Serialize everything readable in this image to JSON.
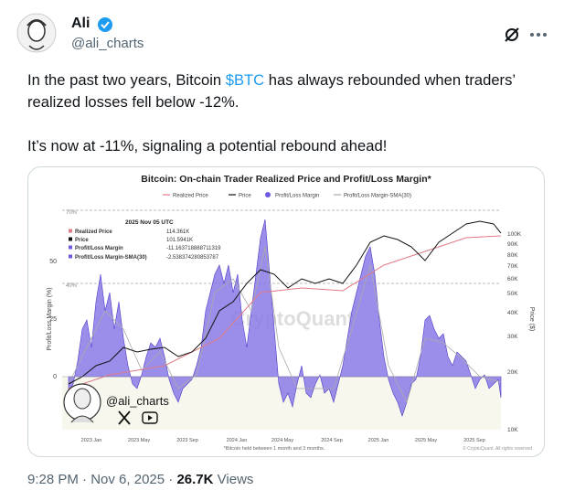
{
  "author": {
    "name": "Ali",
    "handle": "@ali_charts"
  },
  "tweet": {
    "text_before": "In the past two years, Bitcoin ",
    "cashtag": "$BTC",
    "text_after": " has always rebounded when traders’ realized losses fell below -12%.",
    "second_paragraph": "It’s now at -11%, signaling a potential rebound ahead!"
  },
  "image": {
    "title": "Bitcoin: On-chain Trader Realized Price and Profit/Loss Margin*",
    "legend": [
      "Realized Price",
      "Price",
      "Profit/Loss Margin",
      "Profit/Loss Margin-SMA(30)"
    ],
    "tooltip": {
      "date": "2025 Nov 05 UTC",
      "rows": [
        {
          "label": "Realized Price",
          "value": "114.361K"
        },
        {
          "label": "Price",
          "value": "101.5941K"
        },
        {
          "label": "Profit/Loss Margin",
          "value": "-11.163718888711319"
        },
        {
          "label": "Profit/Loss Margin-SMA(30)",
          "value": "-2.538374280853787"
        }
      ]
    },
    "left_ticks": [
      "50",
      "25",
      "0"
    ],
    "right_ticks": [
      "100K",
      "90K",
      "80K",
      "70K",
      "60K",
      "50K",
      "40K",
      "30K",
      "20K",
      "10K"
    ],
    "band_labels": [
      "70%",
      "40%"
    ],
    "x_labels": [
      "2023 Jan",
      "2023 May",
      "2023 Sep",
      "2024 Jan",
      "2024 May",
      "2024 Sep",
      "2025 Jan",
      "2025 May",
      "2025 Sep"
    ],
    "y_label": "Profit/Loss Margin (%)",
    "y2_label": "Price ($)",
    "watermark": "CryptoQuant",
    "overlay_handle": "@ali_charts",
    "footnote": "*Bitcoin held between 1 month and 3 months.",
    "copyright": "© CryptoQuant. All rights reserved"
  },
  "footer": {
    "time": "9:28 PM",
    "separator": "·",
    "date": "Nov 6, 2025",
    "views": "26.7K",
    "views_label": "Views"
  }
}
